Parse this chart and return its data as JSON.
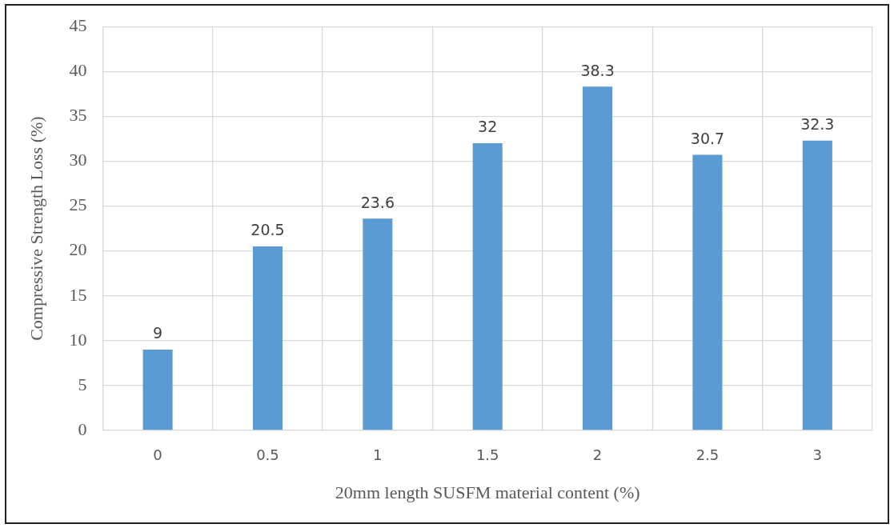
{
  "chart_data": {
    "type": "bar",
    "xlabel": "20mm length SUSFM material content (%)",
    "ylabel": "Compressive Strength Loss (%)",
    "categories": [
      "0",
      "0.5",
      "1",
      "1.5",
      "2",
      "2.5",
      "3"
    ],
    "values": [
      9,
      20.5,
      23.6,
      32,
      38.3,
      30.7,
      32.3
    ],
    "color": "#5b9bd5",
    "ylim": [
      0,
      45
    ],
    "yticks": [
      0,
      5,
      10,
      15,
      20,
      25,
      30,
      35,
      40,
      45
    ],
    "grid": true,
    "data_labels": true
  }
}
